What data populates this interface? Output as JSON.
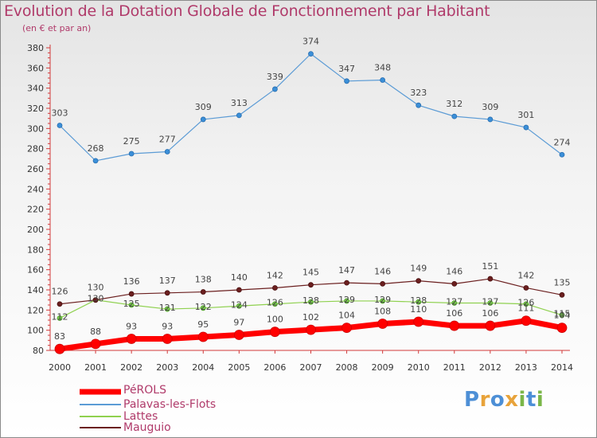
{
  "header": {
    "title": "Evolution de la Dotation Globale de Fonctionnement par Habitant",
    "subtitle": "(en € et par an)"
  },
  "chart_data": {
    "type": "line",
    "x": [
      "2000",
      "2001",
      "2002",
      "2003",
      "2004",
      "2005",
      "2006",
      "2007",
      "2008",
      "2009",
      "2010",
      "2011",
      "2012",
      "2013",
      "2014"
    ],
    "ylim": [
      80,
      380
    ],
    "y_ticks": [
      80,
      100,
      120,
      140,
      160,
      180,
      200,
      220,
      240,
      260,
      280,
      300,
      320,
      340,
      360,
      380
    ],
    "grid": false,
    "legend_placement": "bottom-left",
    "series": [
      {
        "name": "PéROLS",
        "color": "#ff0000",
        "values": [
          83,
          88,
          93,
          93,
          95,
          97,
          100,
          102,
          104,
          108,
          110,
          106,
          106,
          111,
          104
        ]
      },
      {
        "name": "Palavas-les-Flots",
        "color": "#5b9bd5",
        "values": [
          303,
          268,
          275,
          277,
          309,
          313,
          339,
          374,
          347,
          348,
          323,
          312,
          309,
          301,
          274
        ]
      },
      {
        "name": "Lattes",
        "color": "#8fd14f",
        "values": [
          112,
          130,
          125,
          121,
          122,
          124,
          126,
          128,
          129,
          129,
          128,
          127,
          127,
          126,
          115
        ]
      },
      {
        "name": "Mauguio",
        "color": "#6b1f1f",
        "values": [
          126,
          130,
          136,
          137,
          138,
          140,
          142,
          145,
          147,
          146,
          149,
          146,
          151,
          142,
          135
        ]
      }
    ]
  },
  "brand": {
    "letters": [
      "P",
      "r",
      "o",
      "x",
      "i",
      "t",
      "i"
    ]
  }
}
